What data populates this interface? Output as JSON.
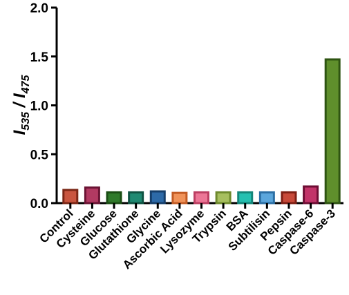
{
  "chart_data": {
    "type": "bar",
    "title": "",
    "ylabel": {
      "main": "I",
      "sub1": "535",
      "sep": " / I",
      "sub2": "475"
    },
    "xlabel": "",
    "ylim": [
      0,
      2.0
    ],
    "yticks": [
      "0.0",
      "0.5",
      "1.0",
      "1.5",
      "2.0"
    ],
    "ytick_values": [
      0,
      0.5,
      1.0,
      1.5,
      2.0
    ],
    "grid": false,
    "categories": [
      "Control",
      "Cysteine",
      "Glucose",
      "Glutathione",
      "Glycine",
      "Ascorbic Acid",
      "Lysozyme",
      "Trypsin",
      "BSA",
      "Subtilisin",
      "Pepsin",
      "Caspase-6",
      "Caspase-3"
    ],
    "values": [
      0.135,
      0.16,
      0.11,
      0.11,
      0.12,
      0.105,
      0.11,
      0.11,
      0.11,
      0.11,
      0.11,
      0.17,
      1.47
    ],
    "bar_colors": [
      {
        "fill": "#c9553f",
        "stroke": "#7a2615"
      },
      {
        "fill": "#b23a62",
        "stroke": "#6b1434"
      },
      {
        "fill": "#2f7a2a",
        "stroke": "#1a4d14"
      },
      {
        "fill": "#1f8a72",
        "stroke": "#0f5242"
      },
      {
        "fill": "#2d6aa8",
        "stroke": "#153e6a"
      },
      {
        "fill": "#f0935a",
        "stroke": "#c25b24"
      },
      {
        "fill": "#ec7696",
        "stroke": "#bc3e62"
      },
      {
        "fill": "#a7bf5f",
        "stroke": "#6e8a2e"
      },
      {
        "fill": "#25c0b1",
        "stroke": "#148579"
      },
      {
        "fill": "#5ba6dc",
        "stroke": "#2c6fa4"
      },
      {
        "fill": "#c84a3a",
        "stroke": "#7e1f14"
      },
      {
        "fill": "#c23469",
        "stroke": "#6e0e34"
      },
      {
        "fill": "#5f8f2c",
        "stroke": "#2e5412"
      }
    ]
  }
}
